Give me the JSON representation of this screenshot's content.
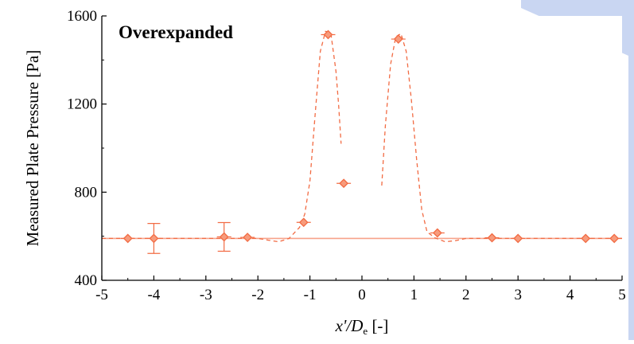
{
  "chart_data": {
    "type": "scatter",
    "title": "",
    "annotation": "Overexpanded",
    "xlabel_parts": [
      "x'/",
      "D",
      "e",
      " [-]"
    ],
    "ylabel": "Measured Plate Pressure [Pa]",
    "xlim": [
      -5,
      5
    ],
    "ylim": [
      400,
      1600
    ],
    "x_ticks": [
      -5,
      -4,
      -3,
      -2,
      -1,
      0,
      1,
      2,
      3,
      4,
      5
    ],
    "y_ticks": [
      400,
      800,
      1200,
      1600
    ],
    "grid": false,
    "baseline": 590,
    "colors": {
      "series": "#f26b43",
      "baseline": "#f7a38a",
      "axis": "#000000"
    },
    "series": [
      {
        "x": [
          -4.5,
          -4.0,
          -2.65,
          -2.2,
          -1.12,
          -0.65,
          -0.35,
          0.7,
          1.45,
          2.5,
          3.0,
          4.3,
          4.85
        ],
        "y": [
          590,
          590,
          597,
          595,
          663,
          1515,
          840,
          1495,
          615,
          593,
          590,
          590,
          590
        ],
        "error": [
          null,
          68,
          65,
          null,
          null,
          null,
          null,
          null,
          null,
          null,
          null,
          null,
          null
        ]
      }
    ],
    "fit_segments": [
      {
        "x": [
          -5.0,
          -2.0,
          -1.8,
          -1.6,
          -1.4,
          -1.2,
          -1.1,
          -1.0,
          -0.9,
          -0.8,
          -0.7,
          -0.6,
          -0.5,
          -0.45,
          -0.4
        ],
        "y": [
          590,
          590,
          582,
          575,
          590,
          640,
          700,
          850,
          1150,
          1440,
          1530,
          1525,
          1350,
          1200,
          1020
        ]
      },
      {
        "x": [
          0.38,
          0.45,
          0.55,
          0.65,
          0.75,
          0.85,
          0.95,
          1.05,
          1.15,
          1.25,
          1.4,
          1.6,
          1.8,
          2.0,
          2.5,
          3.0,
          4.0,
          5.0
        ],
        "y": [
          830,
          1100,
          1380,
          1505,
          1520,
          1440,
          1220,
          950,
          720,
          620,
          593,
          575,
          580,
          590,
          590,
          590,
          590,
          590
        ]
      }
    ]
  }
}
